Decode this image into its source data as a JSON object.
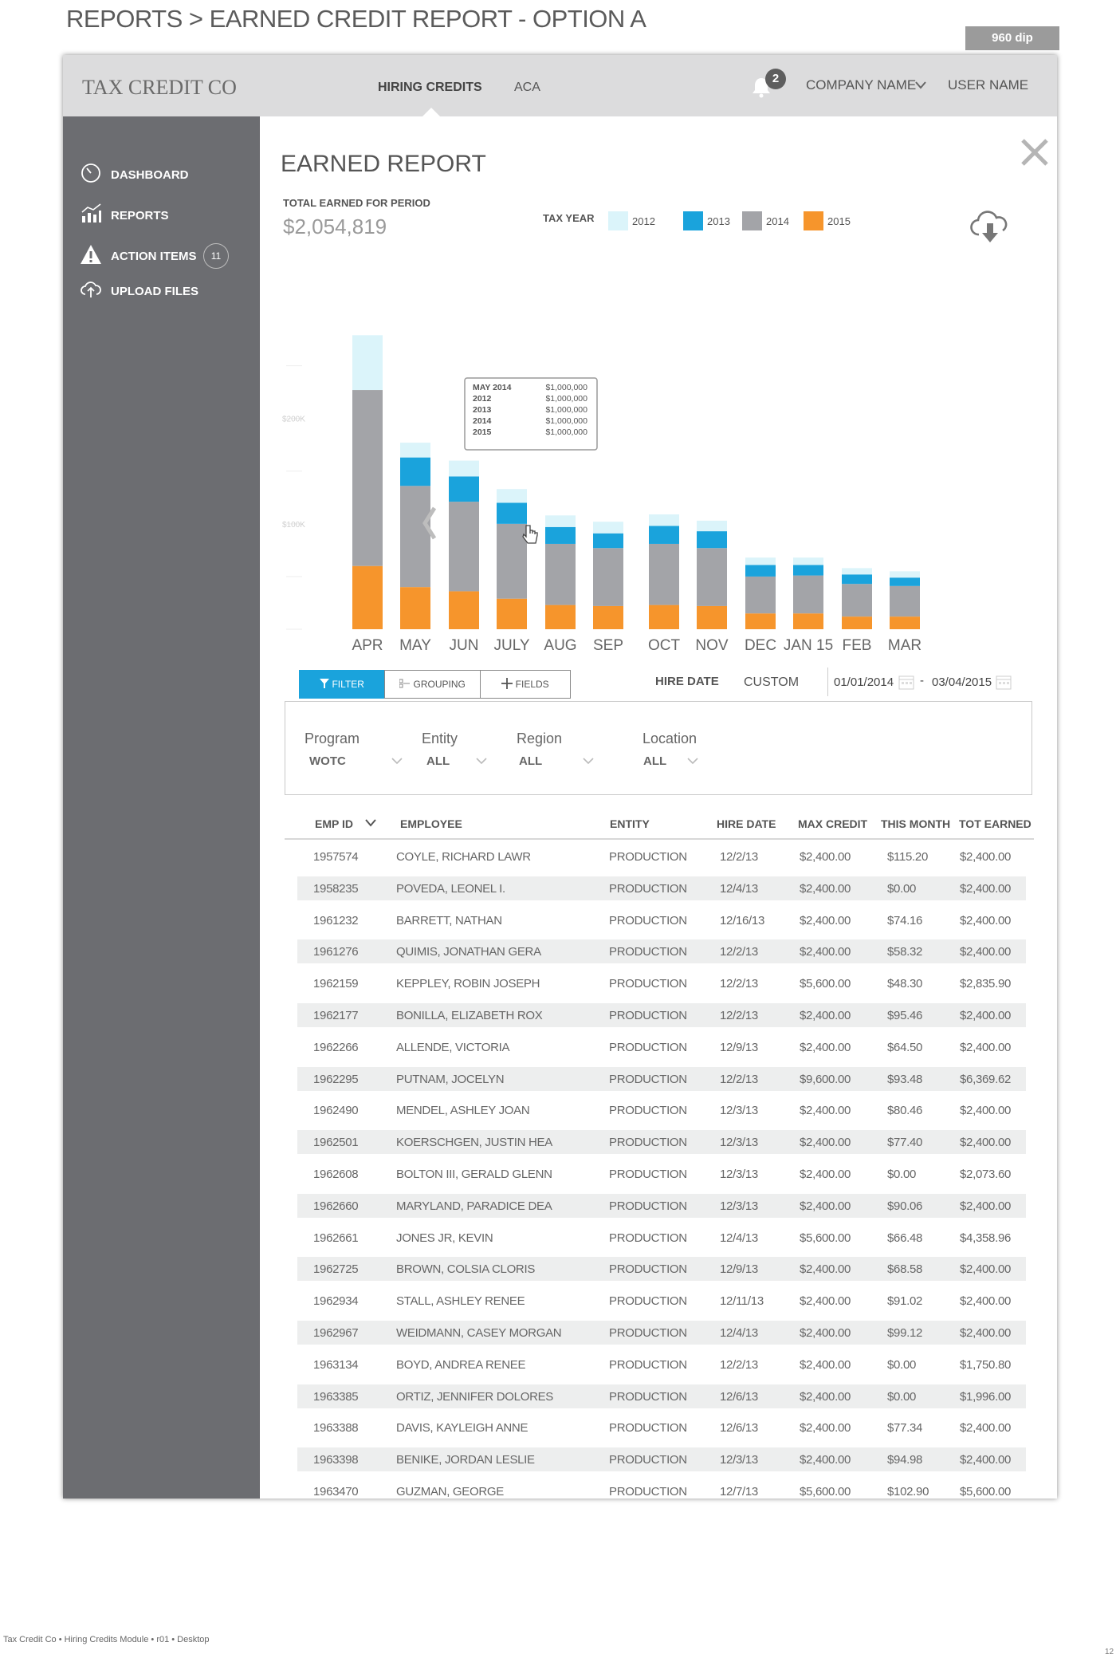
{
  "page": {
    "title": "REPORTS > EARNED CREDIT REPORT - OPTION A",
    "dip_badge": "960 dip",
    "footer_note": "Tax Credit Co • Hiring Credits Module • r01 • Desktop",
    "page_number": "12"
  },
  "topbar": {
    "logo": "TAX CREDIT CO",
    "nav": [
      {
        "label": "HIRING CREDITS",
        "active": true
      },
      {
        "label": "ACA",
        "active": false
      }
    ],
    "notification_count": "2",
    "company": "COMPANY NAME",
    "user": "USER NAME"
  },
  "sidebar": {
    "items": [
      {
        "label": "DASHBOARD",
        "icon": "dashboard-icon"
      },
      {
        "label": "REPORTS",
        "icon": "chart-icon"
      },
      {
        "label": "ACTION ITEMS",
        "icon": "warning-icon",
        "count": "11"
      },
      {
        "label": "UPLOAD FILES",
        "icon": "upload-cloud-icon"
      }
    ]
  },
  "report": {
    "title": "EARNED REPORT",
    "total_label": "TOTAL EARNED FOR PERIOD",
    "total_value": "$2,054,819",
    "tax_year_label": "TAX YEAR",
    "legend": [
      {
        "label": "2012",
        "color": "#dbf4fa"
      },
      {
        "label": "2013",
        "color": "#1aa3dc"
      },
      {
        "label": "2014",
        "color": "#a3a4a8"
      },
      {
        "label": "2015",
        "color": "#f6952c"
      }
    ]
  },
  "chart_data": {
    "type": "bar",
    "stacked": true,
    "categories": [
      "APR",
      "MAY",
      "JUN",
      "JULY",
      "AUG",
      "SEP",
      "OCT",
      "NOV",
      "DEC",
      "JAN 15",
      "FEB",
      "MAR"
    ],
    "series": [
      {
        "name": "2015",
        "color": "#f6952c",
        "values": [
          60,
          40,
          36,
          29,
          23,
          22,
          23,
          22,
          15,
          15,
          12,
          12
        ]
      },
      {
        "name": "2014",
        "color": "#a3a4a8",
        "values": [
          167,
          96,
          85,
          71,
          58,
          55,
          58,
          55,
          35,
          36,
          31,
          29
        ]
      },
      {
        "name": "2013",
        "color": "#1aa3dc",
        "values": [
          0,
          27,
          24,
          20,
          16,
          14,
          17,
          16,
          11,
          10,
          9,
          8
        ]
      },
      {
        "name": "2012",
        "color": "#dbf4fa",
        "values": [
          52,
          14,
          15,
          13,
          11,
          11,
          11,
          10,
          7,
          7,
          6,
          6
        ]
      }
    ],
    "y_tick_labels": [
      {
        "value": 200,
        "label": "$200K"
      },
      {
        "value": 100,
        "label": "$100K"
      }
    ],
    "ylim": [
      0,
      280
    ],
    "tooltip": {
      "category": "APR",
      "rows": [
        {
          "label": "MAY 2014",
          "value": "$1,000,000"
        },
        {
          "label": "2012",
          "value": "$1,000,000"
        },
        {
          "label": "2013",
          "value": "$1,000,000"
        },
        {
          "label": "2014",
          "value": "$1,000,000"
        },
        {
          "label": "2015",
          "value": "$1,000,000"
        }
      ]
    }
  },
  "toolbar": {
    "filter_label": "FILTER",
    "grouping_label": "GROUPING",
    "fields_label": "FIELDS",
    "hire_date_label": "HIRE DATE",
    "custom_label": "CUSTOM",
    "date_from": "01/01/2014",
    "date_sep": "-",
    "date_to": "03/04/2015"
  },
  "filters": [
    {
      "label": "Program",
      "value": "WOTC"
    },
    {
      "label": "Entity",
      "value": "ALL"
    },
    {
      "label": "Region",
      "value": "ALL"
    },
    {
      "label": "Location",
      "value": "ALL"
    }
  ],
  "table": {
    "columns": [
      "EMP ID",
      "EMPLOYEE",
      "ENTITY",
      "HIRE DATE",
      "MAX CREDIT",
      "THIS MONTH",
      "TOT EARNED"
    ],
    "rows": [
      [
        "1957574",
        "COYLE, RICHARD LAWR",
        "PRODUCTION",
        "12/2/13",
        "$2,400.00",
        "$115.20",
        "$2,400.00"
      ],
      [
        "1958235",
        "POVEDA, LEONEL I.",
        "PRODUCTION",
        "12/4/13",
        "$2,400.00",
        "$0.00",
        "$2,400.00"
      ],
      [
        "1961232",
        "BARRETT, NATHAN",
        "PRODUCTION",
        "12/16/13",
        "$2,400.00",
        "$74.16",
        "$2,400.00"
      ],
      [
        "1961276",
        "QUIMIS, JONATHAN GERA",
        "PRODUCTION",
        "12/2/13",
        "$2,400.00",
        "$58.32",
        "$2,400.00"
      ],
      [
        "1962159",
        "KEPPLEY, ROBIN JOSEPH",
        "PRODUCTION",
        "12/2/13",
        "$5,600.00",
        "$48.30",
        "$2,835.90"
      ],
      [
        "1962177",
        "BONILLA, ELIZABETH ROX",
        "PRODUCTION",
        "12/2/13",
        "$2,400.00",
        "$95.46",
        "$2,400.00"
      ],
      [
        "1962266",
        "ALLENDE, VICTORIA",
        "PRODUCTION",
        "12/9/13",
        "$2,400.00",
        "$64.50",
        "$2,400.00"
      ],
      [
        "1962295",
        "PUTNAM, JOCELYN",
        "PRODUCTION",
        "12/2/13",
        "$9,600.00",
        "$93.48",
        "$6,369.62"
      ],
      [
        "1962490",
        "MENDEL, ASHLEY JOAN",
        "PRODUCTION",
        "12/3/13",
        "$2,400.00",
        "$80.46",
        "$2,400.00"
      ],
      [
        "1962501",
        "KOERSCHGEN, JUSTIN HEA",
        "PRODUCTION",
        "12/3/13",
        "$2,400.00",
        "$77.40",
        "$2,400.00"
      ],
      [
        "1962608",
        "BOLTON III, GERALD GLENN",
        "PRODUCTION",
        "12/3/13",
        "$2,400.00",
        "$0.00",
        "$2,073.60"
      ],
      [
        "1962660",
        "MARYLAND, PARADICE DEA",
        "PRODUCTION",
        "12/3/13",
        "$2,400.00",
        "$90.06",
        "$2,400.00"
      ],
      [
        "1962661",
        "JONES JR, KEVIN",
        "PRODUCTION",
        "12/4/13",
        "$5,600.00",
        "$66.48",
        "$4,358.96"
      ],
      [
        "1962725",
        "BROWN, COLSIA CLORIS",
        "PRODUCTION",
        "12/9/13",
        "$2,400.00",
        "$68.58",
        "$2,400.00"
      ],
      [
        "1962934",
        "STALL, ASHLEY RENEE",
        "PRODUCTION",
        "12/11/13",
        "$2,400.00",
        "$91.02",
        "$2,400.00"
      ],
      [
        "1962967",
        "WEIDMANN, CASEY MORGAN",
        "PRODUCTION",
        "12/4/13",
        "$2,400.00",
        "$99.12",
        "$2,400.00"
      ],
      [
        "1963134",
        "BOYD, ANDREA RENEE",
        "PRODUCTION",
        "12/2/13",
        "$2,400.00",
        "$0.00",
        "$1,750.80"
      ],
      [
        "1963385",
        "ORTIZ, JENNIFER DOLORES",
        "PRODUCTION",
        "12/6/13",
        "$2,400.00",
        "$0.00",
        "$1,996.00"
      ],
      [
        "1963388",
        "DAVIS, KAYLEIGH ANNE",
        "PRODUCTION",
        "12/6/13",
        "$2,400.00",
        "$77.34",
        "$2,400.00"
      ],
      [
        "1963398",
        "BENIKE, JORDAN LESLIE",
        "PRODUCTION",
        "12/3/13",
        "$2,400.00",
        "$94.98",
        "$2,400.00"
      ],
      [
        "1963470",
        "GUZMAN, GEORGE",
        "PRODUCTION",
        "12/7/13",
        "$5,600.00",
        "$102.90",
        "$5,600.00"
      ]
    ]
  }
}
